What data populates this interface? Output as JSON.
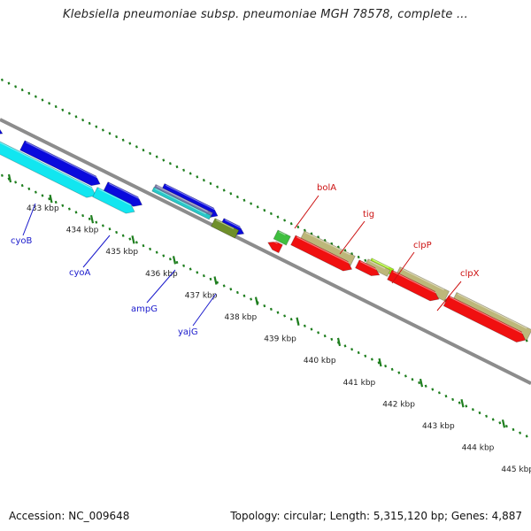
{
  "title": "Klebsiella pneumoniae subsp. pneumoniae MGH 78578, complete ...",
  "footer": {
    "accession": "Accession: NC_009648",
    "topology": "Topology: circular; Length: 5,315,120 bp; Genes: 4,887"
  },
  "colors": {
    "backbone": "#8c8c8c",
    "tick": "#1e7e1e",
    "blue_gene": "#0a0adc",
    "cyan_gene": "#12e6f0",
    "khaki_gene": "#bdb77a",
    "red_gene": "#f01010",
    "green_gene": "#3fbf3f",
    "lime_gene": "#a6f01e",
    "olive_gene": "#6f8f2a",
    "blue_label": "#1a1acc",
    "red_label": "#cc1111"
  },
  "ticks": [
    {
      "label": "433 kbp"
    },
    {
      "label": "434 kbp"
    },
    {
      "label": "435 kbp"
    },
    {
      "label": "436 kbp"
    },
    {
      "label": "437 kbp"
    },
    {
      "label": "438 kbp"
    },
    {
      "label": "439 kbp"
    },
    {
      "label": "440 kbp"
    },
    {
      "label": "441 kbp"
    },
    {
      "label": "442 kbp"
    },
    {
      "label": "443 kbp"
    },
    {
      "label": "444 kbp"
    },
    {
      "label": "445 kbp"
    }
  ],
  "gene_labels": [
    {
      "text": "cyoB",
      "color": "blue"
    },
    {
      "text": "cyoA",
      "color": "blue"
    },
    {
      "text": "ampG",
      "color": "blue"
    },
    {
      "text": "yajG",
      "color": "blue"
    },
    {
      "text": "bolA",
      "color": "red"
    },
    {
      "text": "tig",
      "color": "red"
    },
    {
      "text": "clpP",
      "color": "red"
    },
    {
      "text": "clpX",
      "color": "red"
    }
  ]
}
